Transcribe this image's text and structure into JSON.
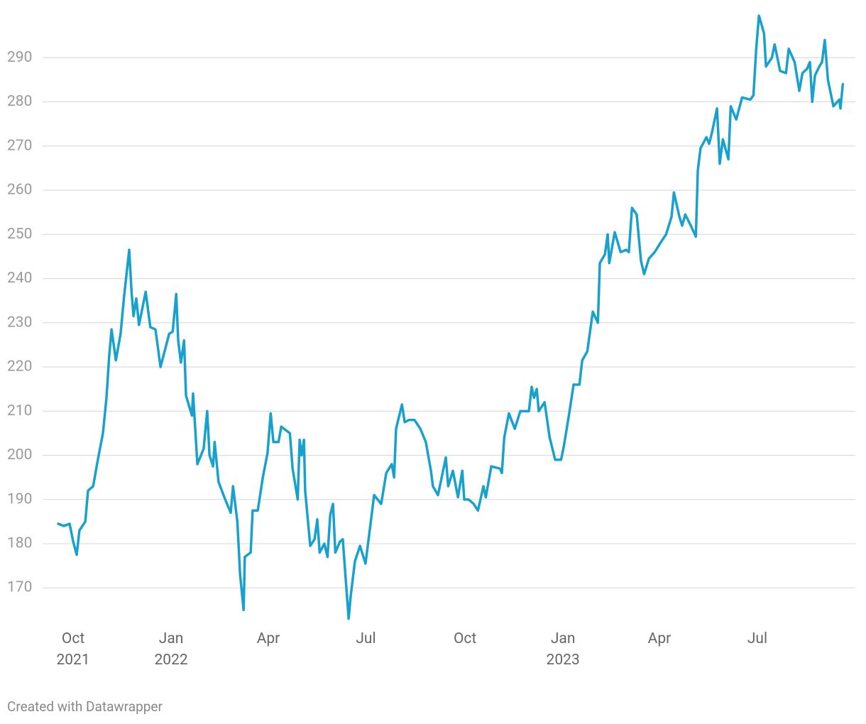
{
  "chart_data": {
    "type": "line",
    "credit": "Created with Datawrapper",
    "x": [
      2021.712,
      2021.726,
      2021.741,
      2021.75,
      2021.759,
      2021.766,
      2021.781,
      2021.788,
      2021.801,
      2021.813,
      2021.826,
      2021.835,
      2021.842,
      2021.848,
      2021.859,
      2021.871,
      2021.88,
      2021.893,
      2021.899,
      2021.904,
      2021.911,
      2021.918,
      2021.935,
      2021.947,
      2021.96,
      2021.973,
      2021.995,
      2022.004,
      2022.013,
      2022.018,
      2022.025,
      2022.033,
      2022.038,
      2022.053,
      2022.056,
      2022.067,
      2022.083,
      2022.092,
      2022.098,
      2022.107,
      2022.111,
      2022.121,
      2022.138,
      2022.152,
      2022.158,
      2022.169,
      2022.176,
      2022.185,
      2022.188,
      2022.203,
      2022.208,
      2022.221,
      2022.234,
      2022.246,
      2022.254,
      2022.261,
      2022.274,
      2022.281,
      2022.303,
      2022.31,
      2022.323,
      2022.328,
      2022.333,
      2022.339,
      2022.342,
      2022.355,
      2022.366,
      2022.373,
      2022.379,
      2022.391,
      2022.399,
      2022.406,
      2022.413,
      2022.419,
      2022.431,
      2022.438,
      2022.453,
      2022.458,
      2022.469,
      2022.482,
      2022.496,
      2022.511,
      2022.518,
      2022.536,
      2022.549,
      2022.563,
      2022.569,
      2022.574,
      2022.589,
      2022.596,
      2022.607,
      2022.621,
      2022.636,
      2022.65,
      2022.663,
      2022.668,
      2022.681,
      2022.701,
      2022.707,
      2022.719,
      2022.732,
      2022.743,
      2022.748,
      2022.759,
      2022.772,
      2022.783,
      2022.797,
      2022.803,
      2022.817,
      2022.839,
      2022.844,
      2022.85,
      2022.862,
      2022.877,
      2022.891,
      2022.913,
      2022.92,
      2022.926,
      2022.933,
      2022.938,
      2022.953,
      2022.966,
      2022.98,
      2022.995,
      2023.002,
      2023.015,
      2023.027,
      2023.042,
      2023.049,
      2023.062,
      2023.076,
      2023.089,
      2023.094,
      2023.107,
      2023.114,
      2023.118,
      2023.132,
      2023.147,
      2023.161,
      2023.168,
      2023.176,
      2023.188,
      2023.199,
      2023.207,
      2023.219,
      2023.234,
      2023.248,
      2023.263,
      2023.277,
      2023.283,
      2023.297,
      2023.304,
      2023.312,
      2023.326,
      2023.339,
      2023.344,
      2023.351,
      2023.366,
      2023.373,
      2023.38,
      2023.393,
      2023.4,
      2023.408,
      2023.422,
      2023.428,
      2023.442,
      2023.457,
      2023.478,
      2023.486,
      2023.493,
      2023.5,
      2023.513,
      2023.518,
      2023.533,
      2023.54,
      2023.554,
      2023.569,
      2023.576,
      2023.591,
      2023.603,
      2023.611,
      2023.623,
      2023.63,
      2023.636,
      2023.643,
      2023.654,
      2023.661,
      2023.668,
      2023.676,
      2023.69,
      2023.705,
      2023.708,
      2023.714
    ],
    "series": [
      {
        "color": "#18a1cd",
        "values": [
          184.5,
          184,
          184.5,
          180.5,
          177.5,
          183,
          185,
          192,
          193,
          199,
          205,
          213,
          222.5,
          228.5,
          221.5,
          227.5,
          236,
          246.5,
          237,
          231.5,
          235.5,
          229.5,
          237,
          229,
          228.5,
          220,
          227.5,
          228,
          236.5,
          226,
          221,
          226,
          213.5,
          209,
          214,
          198,
          201.5,
          210,
          200,
          197.5,
          203,
          194,
          190,
          187,
          193,
          185,
          173,
          165,
          177,
          178,
          187.5,
          187.5,
          195,
          200.5,
          209.5,
          203,
          203,
          206.5,
          205,
          197,
          190,
          203.5,
          200,
          203.5,
          192,
          179.5,
          181,
          185.5,
          178,
          180,
          177,
          186.5,
          189,
          178,
          180.5,
          181,
          163,
          168,
          176,
          179.5,
          175.5,
          186,
          191,
          189,
          196,
          198,
          195,
          206,
          211.5,
          207.5,
          208,
          208,
          206,
          203,
          196.5,
          193,
          191,
          199.5,
          193,
          196.5,
          190.5,
          196.5,
          190,
          190,
          189,
          187.5,
          193,
          190.5,
          197.5,
          197,
          196,
          204,
          209.5,
          206,
          210,
          210,
          215.5,
          213,
          215,
          210,
          212,
          204,
          199,
          199,
          202,
          209,
          216,
          216,
          221.5,
          223.5,
          232.5,
          230,
          243.5,
          245.5,
          250,
          243.5,
          250.5,
          246,
          246.5,
          246,
          256,
          254.5,
          244,
          241,
          244.5,
          246,
          248,
          250,
          254,
          259.5,
          254,
          252,
          254.5,
          252,
          249.5,
          264.5,
          269.5,
          272,
          270.5,
          273,
          278.5,
          266,
          271.5,
          267,
          279,
          276,
          281,
          280.5,
          281.5,
          292,
          299.5,
          295.5,
          288,
          290,
          293,
          287,
          286.5,
          292,
          289,
          282.5,
          286.5,
          287.5,
          289,
          280,
          286,
          288,
          289,
          294,
          285,
          279,
          280.5,
          278.5,
          284
        ]
      }
    ],
    "xlim": [
      2021.672,
      2023.746
    ],
    "xticks": [
      {
        "value": 2021.75,
        "label": "Oct\n2021"
      },
      {
        "value": 2022.0,
        "label": "Jan\n2022"
      },
      {
        "value": 2022.248,
        "label": "Apr"
      },
      {
        "value": 2022.497,
        "label": "Jul"
      },
      {
        "value": 2022.75,
        "label": "Oct"
      },
      {
        "value": 2023.0,
        "label": "Jan\n2023"
      },
      {
        "value": 2023.246,
        "label": "Apr"
      },
      {
        "value": 2023.496,
        "label": "Jul"
      }
    ],
    "ylim": [
      162,
      300
    ],
    "yticks": [
      170,
      180,
      190,
      200,
      210,
      220,
      230,
      240,
      250,
      260,
      270,
      280,
      290
    ],
    "grid": true
  }
}
